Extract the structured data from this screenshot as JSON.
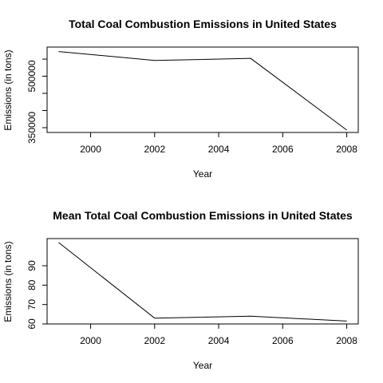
{
  "chart_data": [
    {
      "type": "line",
      "title": "Total Coal Combustion Emissions in United States",
      "xlabel": "Year",
      "ylabel": "Emissions (in tons)",
      "x": [
        1999,
        2002,
        2005,
        2008
      ],
      "series": [
        {
          "values": [
            572000,
            546000,
            552000,
            343000
          ]
        }
      ],
      "xlim": [
        1998.64,
        2008.36
      ],
      "ylim": [
        336000,
        585000
      ],
      "xticks": [
        2000,
        2002,
        2004,
        2006,
        2008
      ],
      "xtick_labels": [
        "2000",
        "2002",
        "2004",
        "2006",
        "2008"
      ],
      "yticks": [
        350000,
        400000,
        450000,
        500000,
        550000
      ],
      "ytick_labels": [
        "350000",
        "",
        "",
        "500000",
        ""
      ],
      "grid": false,
      "line_color": "#000000"
    },
    {
      "type": "line",
      "title": "Mean Total Coal Combustion Emissions in United States",
      "xlabel": "Year",
      "ylabel": "Emissions (in tons)",
      "x": [
        1999,
        2002,
        2005,
        2008
      ],
      "series": [
        {
          "values": [
            102,
            63,
            64,
            61.5
          ]
        }
      ],
      "xlim": [
        1998.64,
        2008.36
      ],
      "ylim": [
        60,
        104
      ],
      "xticks": [
        2000,
        2002,
        2004,
        2006,
        2008
      ],
      "xtick_labels": [
        "2000",
        "2002",
        "2004",
        "2006",
        "2008"
      ],
      "yticks": [
        60,
        70,
        80,
        90
      ],
      "ytick_labels": [
        "60",
        "70",
        "80",
        "90"
      ],
      "grid": false,
      "line_color": "#000000"
    }
  ]
}
